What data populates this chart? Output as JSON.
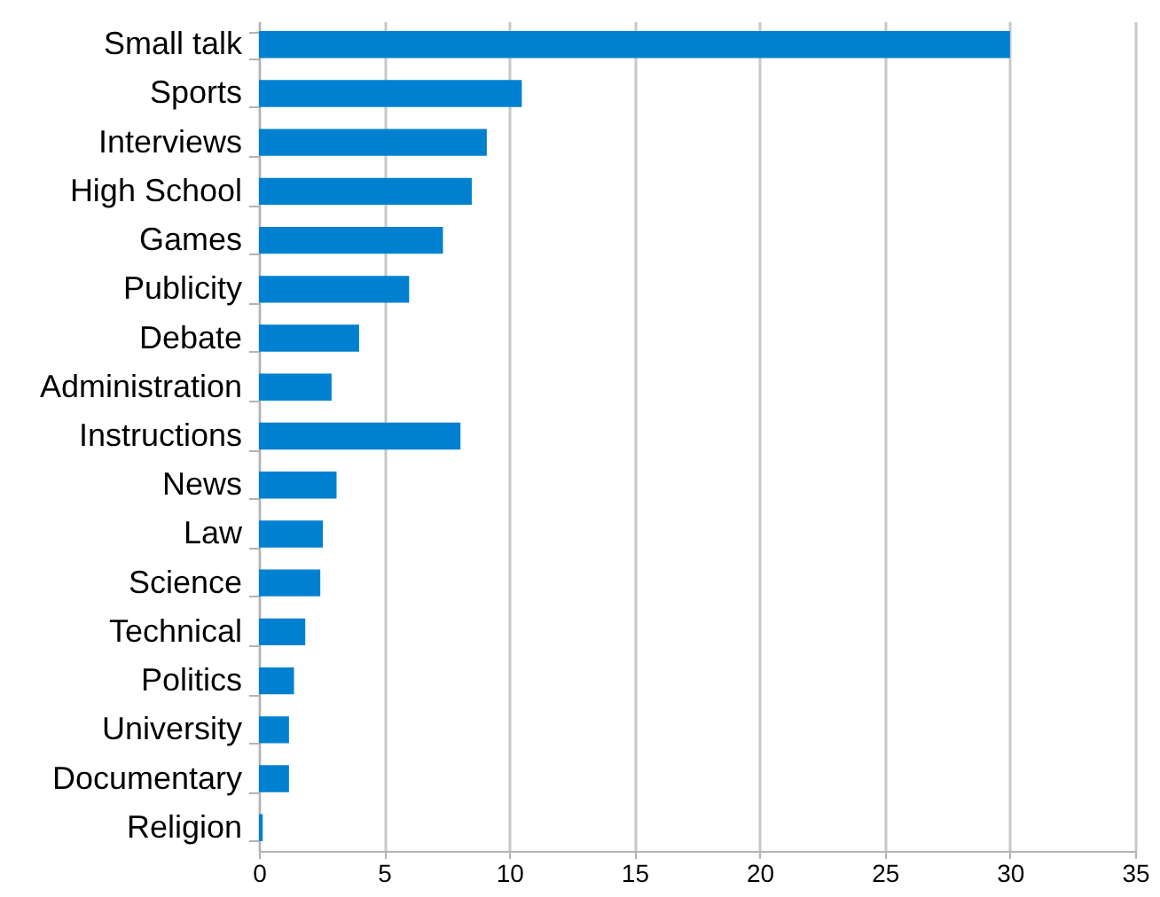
{
  "chart_data": {
    "type": "bar",
    "orientation": "horizontal",
    "categories": [
      "Small talk",
      "Sports",
      "Interviews",
      "High School",
      "Games",
      "Publicity",
      "Debate",
      "Administration",
      "Instructions",
      "News",
      "Law",
      "Science",
      "Technical",
      "Politics",
      "University",
      "Documentary",
      "Religion"
    ],
    "values": [
      30,
      10.5,
      9.1,
      8.5,
      7.35,
      6.0,
      4.0,
      2.9,
      8.05,
      3.1,
      2.55,
      2.45,
      1.85,
      1.4,
      1.2,
      1.2,
      0.15
    ],
    "color": "#0080d0",
    "xlim": [
      0,
      35
    ],
    "xticks": [
      0,
      5,
      10,
      15,
      20,
      25,
      30,
      35
    ],
    "grid": "x"
  }
}
